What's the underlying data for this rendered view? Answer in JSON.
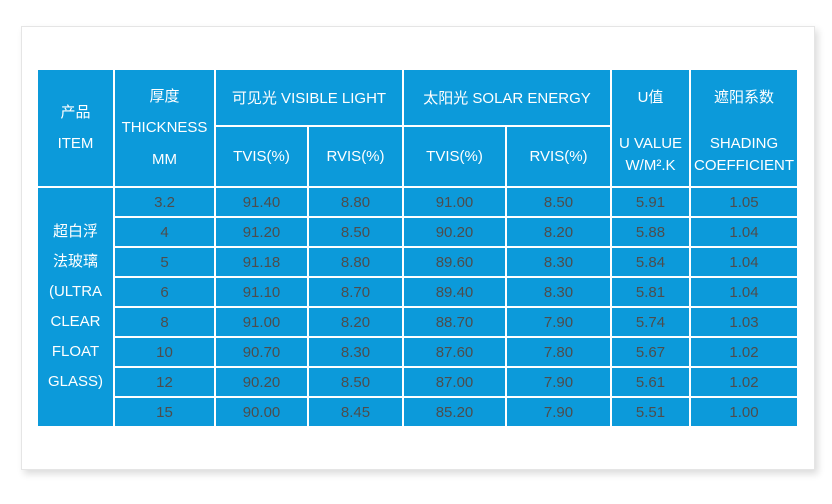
{
  "colors": {
    "cell_blue": "#0c9ada",
    "grid_line": "#ffffff",
    "header_text": "#ffffff",
    "data_text": "#4d4d4d",
    "page_border": "#e5e5e5"
  },
  "table": {
    "columns": {
      "item": {
        "zh": "产品",
        "en": "ITEM"
      },
      "thickness": {
        "zh": "厚度",
        "en": "THICKNESS",
        "unit": "MM"
      },
      "visible_light": {
        "group": "可见光  VISIBLE LIGHT",
        "sub": [
          "TVIS(%)",
          "RVIS(%)"
        ]
      },
      "solar_energy": {
        "group": "太阳光  SOLAR ENERGY",
        "sub": [
          "TVIS(%)",
          "RVIS(%)"
        ]
      },
      "u_value": {
        "zh": "U值",
        "en_line1": "U VALUE",
        "en_line2": "W/M².K"
      },
      "shading_coefficient": {
        "zh": "遮阳系数",
        "en_line1": "SHADING",
        "en_line2": "COEFFICIENT"
      }
    },
    "item_cell_lines": [
      "超白浮",
      "法玻璃",
      "(ULTRA",
      "CLEAR",
      "FLOAT",
      "GLASS)"
    ],
    "rows": [
      {
        "thickness_mm": "3.2",
        "visible_tvis": "91.40",
        "visible_rvis": "8.80",
        "solar_tvis": "91.00",
        "solar_rvis": "8.50",
        "u_value": "5.91",
        "shading_coefficient": "1.05"
      },
      {
        "thickness_mm": "4",
        "visible_tvis": "91.20",
        "visible_rvis": "8.50",
        "solar_tvis": "90.20",
        "solar_rvis": "8.20",
        "u_value": "5.88",
        "shading_coefficient": "1.04"
      },
      {
        "thickness_mm": "5",
        "visible_tvis": "91.18",
        "visible_rvis": "8.80",
        "solar_tvis": "89.60",
        "solar_rvis": "8.30",
        "u_value": "5.84",
        "shading_coefficient": "1.04"
      },
      {
        "thickness_mm": "6",
        "visible_tvis": "91.10",
        "visible_rvis": "8.70",
        "solar_tvis": "89.40",
        "solar_rvis": "8.30",
        "u_value": "5.81",
        "shading_coefficient": "1.04"
      },
      {
        "thickness_mm": "8",
        "visible_tvis": "91.00",
        "visible_rvis": "8.20",
        "solar_tvis": "88.70",
        "solar_rvis": "7.90",
        "u_value": "5.74",
        "shading_coefficient": "1.03"
      },
      {
        "thickness_mm": "10",
        "visible_tvis": "90.70",
        "visible_rvis": "8.30",
        "solar_tvis": "87.60",
        "solar_rvis": "7.80",
        "u_value": "5.67",
        "shading_coefficient": "1.02"
      },
      {
        "thickness_mm": "12",
        "visible_tvis": "90.20",
        "visible_rvis": "8.50",
        "solar_tvis": "87.00",
        "solar_rvis": "7.90",
        "u_value": "5.61",
        "shading_coefficient": "1.02"
      },
      {
        "thickness_mm": "15",
        "visible_tvis": "90.00",
        "visible_rvis": "8.45",
        "solar_tvis": "85.20",
        "solar_rvis": "7.90",
        "u_value": "5.51",
        "shading_coefficient": "1.00"
      }
    ]
  }
}
